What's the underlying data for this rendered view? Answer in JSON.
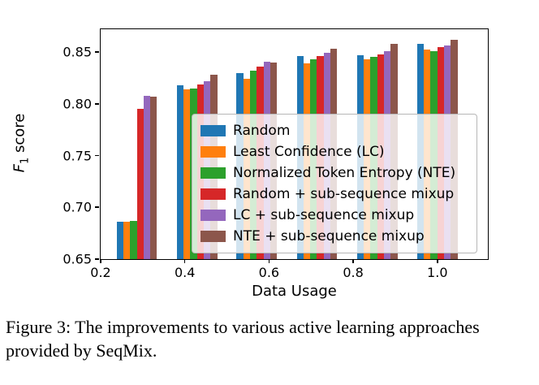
{
  "figure": {
    "caption": "Figure 3: The improvements to various active learning approaches provided by SeqMix."
  },
  "chart_data": {
    "type": "bar",
    "title": "",
    "xlabel": "Data Usage",
    "ylabel": "F1 score",
    "ylabel_parts": {
      "var": "F",
      "sub": "1",
      "rest": " score"
    },
    "xlim": [
      0.2,
      1.12
    ],
    "ylim": [
      0.65,
      0.872
    ],
    "xticks": [
      0.2,
      0.4,
      0.6,
      0.8,
      1.0
    ],
    "xtick_labels": [
      "0.2",
      "0.4",
      "0.6",
      "0.8",
      "1.0"
    ],
    "yticks": [
      0.65,
      0.7,
      0.75,
      0.8,
      0.85
    ],
    "ytick_labels": [
      "0.65",
      "0.70",
      "0.75",
      "0.80",
      "0.85"
    ],
    "x": [
      0.286,
      0.429,
      0.571,
      0.714,
      0.857,
      1.0
    ],
    "bar_width": 0.016,
    "grid": false,
    "legend": {
      "position": "inside-lower-center",
      "frame": true
    },
    "series": [
      {
        "name": "Random",
        "color": "#1f77b4",
        "values": [
          0.686,
          0.818,
          0.83,
          0.846,
          0.847,
          0.858
        ]
      },
      {
        "name": "Least Confidence (LC)",
        "color": "#ff7f0e",
        "values": [
          0.686,
          0.814,
          0.824,
          0.839,
          0.843,
          0.852
        ]
      },
      {
        "name": "Normalized Token Entropy (NTE)",
        "color": "#2ca02c",
        "values": [
          0.687,
          0.815,
          0.832,
          0.843,
          0.845,
          0.851
        ]
      },
      {
        "name": "Random + sub-sequence mixup",
        "color": "#d62728",
        "values": [
          0.795,
          0.819,
          0.836,
          0.846,
          0.848,
          0.855
        ]
      },
      {
        "name": "LC + sub-sequence mixup",
        "color": "#9467bd",
        "values": [
          0.808,
          0.822,
          0.841,
          0.849,
          0.851,
          0.856
        ]
      },
      {
        "name": "NTE + sub-sequence mixup",
        "color": "#8c564b",
        "values": [
          0.807,
          0.828,
          0.84,
          0.853,
          0.858,
          0.862
        ]
      }
    ]
  }
}
